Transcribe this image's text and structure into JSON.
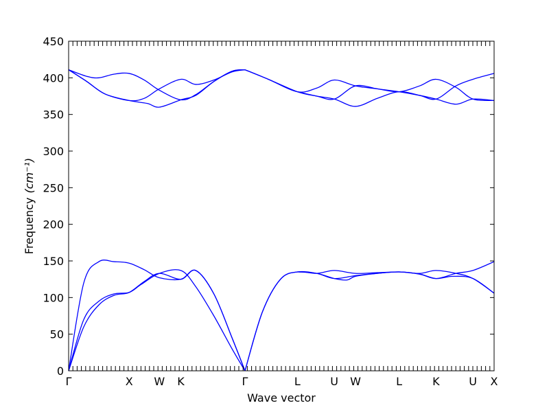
{
  "chart_data": {
    "type": "line",
    "xlabel": "Wave vector",
    "ylabel": "Frequency",
    "ylabel_unit": "(cm⁻¹)",
    "ylim": [
      0,
      450
    ],
    "yticks": [
      0,
      50,
      100,
      150,
      200,
      250,
      300,
      350,
      400,
      450
    ],
    "grid": false,
    "line_color": "#0000ff",
    "high_symmetry_points": [
      {
        "label": "Γ",
        "x": 0
      },
      {
        "label": "X",
        "x": 1
      },
      {
        "label": "W",
        "x": 1.5
      },
      {
        "label": "K",
        "x": 1.854
      },
      {
        "label": "Γ",
        "x": 2.914
      },
      {
        "label": "L",
        "x": 3.78
      },
      {
        "label": "U",
        "x": 4.39
      },
      {
        "label": "W",
        "x": 4.74
      },
      {
        "label": "L",
        "x": 5.46
      },
      {
        "label": "K",
        "x": 6.07
      },
      {
        "label": "U",
        "x": 6.68
      },
      {
        "label": "X",
        "x": 7.03
      }
    ],
    "xlim": [
      0,
      7.03
    ],
    "series": [
      {
        "points": [
          [
            0,
            0
          ],
          [
            0.25,
            70
          ],
          [
            0.5,
            95
          ],
          [
            0.75,
            105
          ],
          [
            1.0,
            107
          ],
          [
            1.2,
            118
          ],
          [
            1.5,
            133
          ],
          [
            1.854,
            137
          ],
          [
            2.1,
            115
          ],
          [
            2.4,
            75
          ],
          [
            2.7,
            30
          ],
          [
            2.914,
            0
          ]
        ]
      },
      {
        "points": [
          [
            0,
            0
          ],
          [
            0.25,
            60
          ],
          [
            0.5,
            90
          ],
          [
            0.75,
            103
          ],
          [
            1.0,
            107
          ],
          [
            1.25,
            122
          ],
          [
            1.5,
            133
          ],
          [
            1.854,
            125
          ],
          [
            2.1,
            137
          ],
          [
            2.4,
            105
          ],
          [
            2.7,
            45
          ],
          [
            2.914,
            0
          ]
        ]
      },
      {
        "points": [
          [
            0,
            0
          ],
          [
            0.25,
            120
          ],
          [
            0.5,
            149
          ],
          [
            0.75,
            149
          ],
          [
            1.0,
            147
          ],
          [
            1.25,
            138
          ],
          [
            1.5,
            127
          ],
          [
            1.854,
            125
          ],
          [
            2.1,
            137
          ],
          [
            2.4,
            105
          ],
          [
            2.7,
            45
          ],
          [
            2.914,
            0
          ]
        ]
      },
      {
        "points": [
          [
            2.914,
            0
          ],
          [
            3.2,
            80
          ],
          [
            3.5,
            125
          ],
          [
            3.78,
            135
          ],
          [
            4.1,
            133
          ],
          [
            4.39,
            137
          ],
          [
            4.74,
            133
          ],
          [
            5.1,
            134
          ],
          [
            5.46,
            135
          ],
          [
            5.8,
            133
          ],
          [
            6.07,
            137
          ],
          [
            6.4,
            133
          ],
          [
            6.68,
            126
          ],
          [
            7.03,
            106
          ]
        ]
      },
      {
        "points": [
          [
            2.914,
            0
          ],
          [
            3.2,
            80
          ],
          [
            3.5,
            125
          ],
          [
            3.78,
            135
          ],
          [
            4.1,
            133
          ],
          [
            4.39,
            126
          ],
          [
            4.74,
            130
          ],
          [
            5.1,
            133
          ],
          [
            5.46,
            135
          ],
          [
            5.8,
            132
          ],
          [
            6.07,
            126
          ],
          [
            6.4,
            133
          ],
          [
            6.68,
            137
          ],
          [
            7.03,
            149
          ]
        ]
      },
      {
        "points": [
          [
            3.78,
            135
          ],
          [
            4.1,
            133
          ],
          [
            4.39,
            126
          ],
          [
            4.6,
            124
          ],
          [
            4.74,
            129
          ],
          [
            5.1,
            133
          ],
          [
            5.46,
            135
          ],
          [
            5.8,
            132
          ],
          [
            6.07,
            126
          ],
          [
            6.35,
            129
          ],
          [
            6.68,
            126
          ],
          [
            7.03,
            106
          ]
        ]
      },
      {
        "points": [
          [
            0,
            411
          ],
          [
            0.3,
            402
          ],
          [
            0.5,
            400
          ],
          [
            0.75,
            405
          ],
          [
            1.0,
            406
          ],
          [
            1.25,
            397
          ],
          [
            1.5,
            383
          ],
          [
            1.854,
            370
          ],
          [
            2.1,
            377
          ],
          [
            2.4,
            395
          ],
          [
            2.7,
            409
          ],
          [
            2.914,
            411
          ]
        ]
      },
      {
        "points": [
          [
            0,
            411
          ],
          [
            0.3,
            395
          ],
          [
            0.6,
            378
          ],
          [
            1.0,
            369
          ],
          [
            1.25,
            372
          ],
          [
            1.5,
            385
          ],
          [
            1.854,
            398
          ],
          [
            2.1,
            391
          ],
          [
            2.4,
            397
          ],
          [
            2.7,
            408
          ],
          [
            2.914,
            411
          ]
        ]
      },
      {
        "points": [
          [
            0,
            411
          ],
          [
            0.3,
            395
          ],
          [
            0.6,
            378
          ],
          [
            1.0,
            369
          ],
          [
            1.3,
            365
          ],
          [
            1.5,
            360
          ],
          [
            1.854,
            370
          ],
          [
            2.1,
            376
          ],
          [
            2.4,
            395
          ],
          [
            2.7,
            409
          ],
          [
            2.914,
            411
          ]
        ]
      },
      {
        "points": [
          [
            2.914,
            411
          ],
          [
            3.3,
            398
          ],
          [
            3.78,
            381
          ],
          [
            4.1,
            386
          ],
          [
            4.39,
            397
          ],
          [
            4.74,
            389
          ],
          [
            5.1,
            385
          ],
          [
            5.46,
            381
          ],
          [
            5.8,
            389
          ],
          [
            6.07,
            398
          ],
          [
            6.4,
            387
          ],
          [
            6.68,
            371
          ],
          [
            7.03,
            369
          ]
        ]
      },
      {
        "points": [
          [
            2.914,
            411
          ],
          [
            3.3,
            398
          ],
          [
            3.78,
            381
          ],
          [
            4.1,
            375
          ],
          [
            4.39,
            371
          ],
          [
            4.74,
            361
          ],
          [
            5.1,
            372
          ],
          [
            5.46,
            381
          ],
          [
            5.8,
            376
          ],
          [
            6.07,
            371
          ],
          [
            6.4,
            364
          ],
          [
            6.68,
            371
          ],
          [
            7.03,
            369
          ]
        ]
      },
      {
        "points": [
          [
            3.78,
            381
          ],
          [
            4.1,
            375
          ],
          [
            4.39,
            371
          ],
          [
            4.74,
            389
          ],
          [
            5.1,
            385
          ],
          [
            5.46,
            381
          ],
          [
            5.8,
            376
          ],
          [
            6.07,
            371
          ],
          [
            6.4,
            389
          ],
          [
            6.68,
            398
          ],
          [
            7.03,
            406
          ]
        ]
      }
    ]
  }
}
